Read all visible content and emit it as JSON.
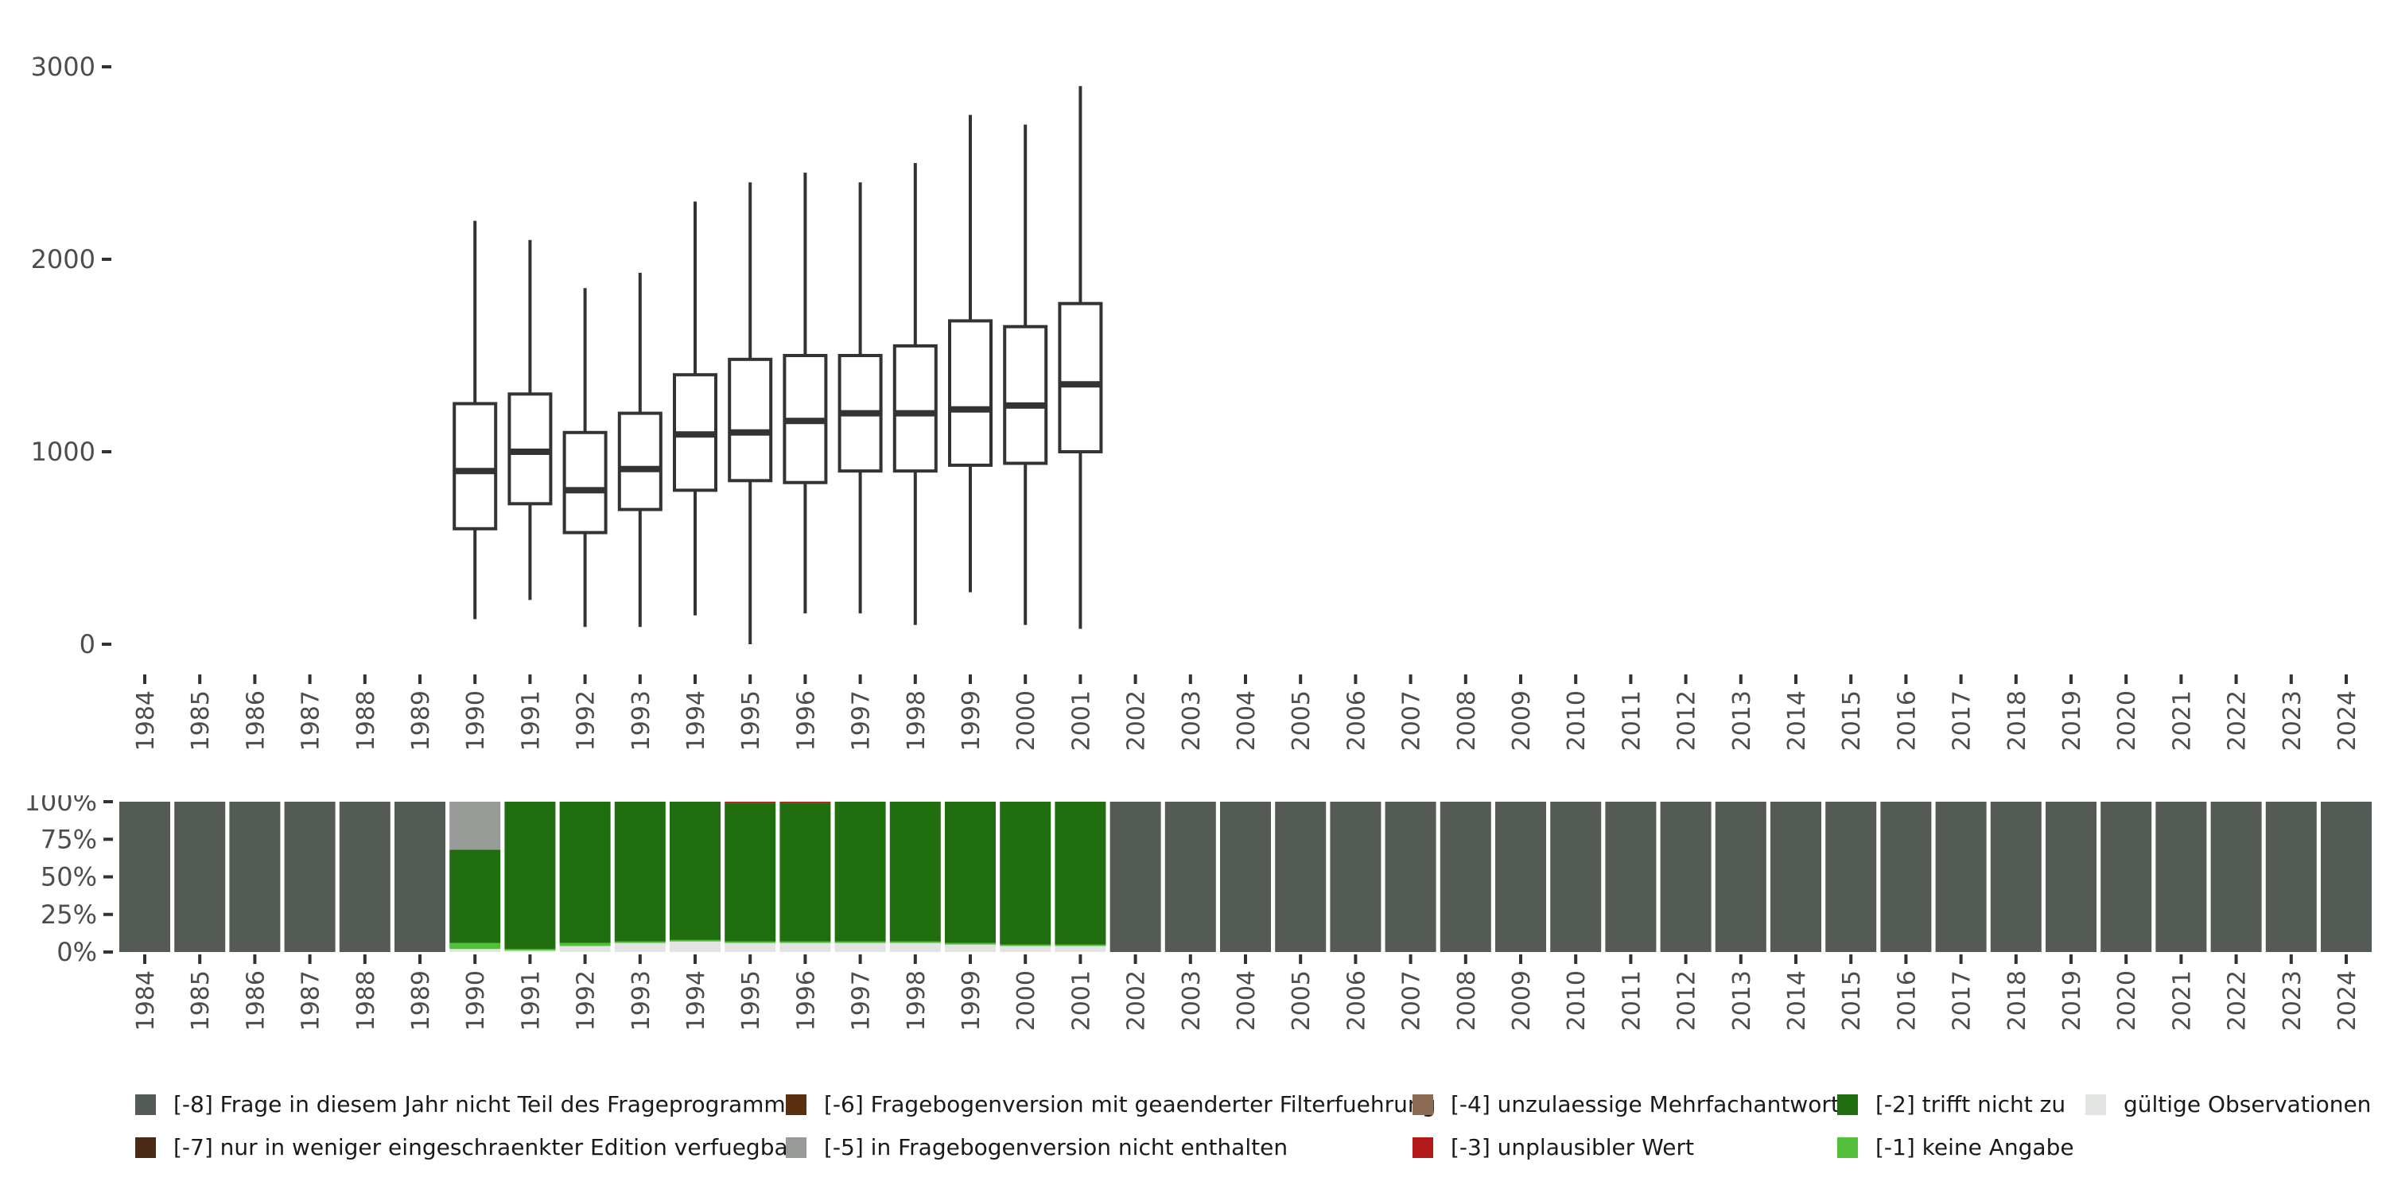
{
  "chart_data": [
    {
      "type": "boxplot",
      "xlabel": "",
      "ylabel": "",
      "ylim": [
        0,
        3000
      ],
      "yticks": [
        0,
        1000,
        2000,
        3000
      ],
      "ytick_labels": [
        "0",
        "1000",
        "2000",
        "3000"
      ],
      "categories": [
        "1984",
        "1985",
        "1986",
        "1987",
        "1988",
        "1989",
        "1990",
        "1991",
        "1992",
        "1993",
        "1994",
        "1995",
        "1996",
        "1997",
        "1998",
        "1999",
        "2000",
        "2001",
        "2002",
        "2003",
        "2004",
        "2005",
        "2006",
        "2007",
        "2008",
        "2009",
        "2010",
        "2011",
        "2012",
        "2013",
        "2014",
        "2015",
        "2016",
        "2017",
        "2018",
        "2019",
        "2020",
        "2021",
        "2022",
        "2023",
        "2024"
      ],
      "boxes": [
        {
          "year": "1990",
          "whisker_low": 130,
          "q1": 600,
          "median": 900,
          "q3": 1250,
          "whisker_high": 2200
        },
        {
          "year": "1991",
          "whisker_low": 230,
          "q1": 730,
          "median": 1000,
          "q3": 1300,
          "whisker_high": 2100
        },
        {
          "year": "1992",
          "whisker_low": 90,
          "q1": 580,
          "median": 800,
          "q3": 1100,
          "whisker_high": 1850
        },
        {
          "year": "1993",
          "whisker_low": 90,
          "q1": 700,
          "median": 910,
          "q3": 1200,
          "whisker_high": 1930
        },
        {
          "year": "1994",
          "whisker_low": 150,
          "q1": 800,
          "median": 1090,
          "q3": 1400,
          "whisker_high": 2300
        },
        {
          "year": "1995",
          "whisker_low": 0,
          "q1": 850,
          "median": 1100,
          "q3": 1480,
          "whisker_high": 2400
        },
        {
          "year": "1996",
          "whisker_low": 160,
          "q1": 840,
          "median": 1160,
          "q3": 1500,
          "whisker_high": 2450
        },
        {
          "year": "1997",
          "whisker_low": 160,
          "q1": 900,
          "median": 1200,
          "q3": 1500,
          "whisker_high": 2400
        },
        {
          "year": "1998",
          "whisker_low": 100,
          "q1": 900,
          "median": 1200,
          "q3": 1550,
          "whisker_high": 2500
        },
        {
          "year": "1999",
          "whisker_low": 270,
          "q1": 930,
          "median": 1220,
          "q3": 1680,
          "whisker_high": 2750
        },
        {
          "year": "2000",
          "whisker_low": 100,
          "q1": 940,
          "median": 1240,
          "q3": 1650,
          "whisker_high": 2700
        },
        {
          "year": "2001",
          "whisker_low": 80,
          "q1": 1000,
          "median": 1350,
          "q3": 1770,
          "whisker_high": 2900
        }
      ]
    },
    {
      "type": "stacked_bar",
      "ylim": [
        0,
        1
      ],
      "yticks": [
        0,
        0.25,
        0.5,
        0.75,
        1
      ],
      "ytick_labels": [
        "0%",
        "25%",
        "50%",
        "75%",
        "100%"
      ],
      "categories": [
        "1984",
        "1985",
        "1986",
        "1987",
        "1988",
        "1989",
        "1990",
        "1991",
        "1992",
        "1993",
        "1994",
        "1995",
        "1996",
        "1997",
        "1998",
        "1999",
        "2000",
        "2001",
        "2002",
        "2003",
        "2004",
        "2005",
        "2006",
        "2007",
        "2008",
        "2009",
        "2010",
        "2011",
        "2012",
        "2013",
        "2014",
        "2015",
        "2016",
        "2017",
        "2018",
        "2019",
        "2020",
        "2021",
        "2022",
        "2023",
        "2024"
      ],
      "series": [
        {
          "name": "gültige Observationen",
          "color": "#e2e4e2",
          "values": [
            0,
            0,
            0,
            0,
            0,
            0,
            0.02,
            0.01,
            0.04,
            0.06,
            0.07,
            0.06,
            0.06,
            0.06,
            0.06,
            0.05,
            0.04,
            0.04,
            0,
            0,
            0,
            0,
            0,
            0,
            0,
            0,
            0,
            0,
            0,
            0,
            0,
            0,
            0,
            0,
            0,
            0,
            0,
            0,
            0,
            0,
            0
          ]
        },
        {
          "name": "[-1] keine Angabe",
          "color": "#52be3c",
          "values": [
            0,
            0,
            0,
            0,
            0,
            0,
            0.04,
            0.01,
            0.02,
            0.01,
            0.01,
            0.01,
            0.01,
            0.01,
            0.01,
            0.01,
            0.01,
            0.01,
            0,
            0,
            0,
            0,
            0,
            0,
            0,
            0,
            0,
            0,
            0,
            0,
            0,
            0,
            0,
            0,
            0,
            0,
            0,
            0,
            0,
            0,
            0
          ]
        },
        {
          "name": "[-2] trifft nicht zu",
          "color": "#216e10",
          "values": [
            0,
            0,
            0,
            0,
            0,
            0,
            0.62,
            0.98,
            0.94,
            0.93,
            0.92,
            0.92,
            0.92,
            0.93,
            0.93,
            0.94,
            0.95,
            0.95,
            0,
            0,
            0,
            0,
            0,
            0,
            0,
            0,
            0,
            0,
            0,
            0,
            0,
            0,
            0,
            0,
            0,
            0,
            0,
            0,
            0,
            0,
            0
          ]
        },
        {
          "name": "[-3] unplausibler Wert",
          "color": "#b31b1b",
          "values": [
            0,
            0,
            0,
            0,
            0,
            0,
            0,
            0,
            0,
            0,
            0,
            0.01,
            0.01,
            0,
            0,
            0,
            0,
            0,
            0,
            0,
            0,
            0,
            0,
            0,
            0,
            0,
            0,
            0,
            0,
            0,
            0,
            0,
            0,
            0,
            0,
            0,
            0,
            0,
            0,
            0,
            0
          ]
        },
        {
          "name": "[-4] unzulaessige Mehrfachantwort",
          "color": "#8c6a53",
          "values": [
            0,
            0,
            0,
            0,
            0,
            0,
            0,
            0,
            0,
            0,
            0,
            0,
            0,
            0,
            0,
            0,
            0,
            0,
            0,
            0,
            0,
            0,
            0,
            0,
            0,
            0,
            0,
            0,
            0,
            0,
            0,
            0,
            0,
            0,
            0,
            0,
            0,
            0,
            0,
            0,
            0
          ]
        },
        {
          "name": "[-5] in Fragebogenversion nicht enthalten",
          "color": "#989b98",
          "values": [
            0,
            0,
            0,
            0,
            0,
            0,
            0.32,
            0,
            0,
            0,
            0,
            0,
            0,
            0,
            0,
            0,
            0,
            0,
            0,
            0,
            0,
            0,
            0,
            0,
            0,
            0,
            0,
            0,
            0,
            0,
            0,
            0,
            0,
            0,
            0,
            0,
            0,
            0,
            0,
            0,
            0
          ]
        },
        {
          "name": "[-6] Fragebogenversion mit geaenderter Filterfuehrung",
          "color": "#5a3010",
          "values": [
            0,
            0,
            0,
            0,
            0,
            0,
            0,
            0,
            0,
            0,
            0,
            0,
            0,
            0,
            0,
            0,
            0,
            0,
            0,
            0,
            0,
            0,
            0,
            0,
            0,
            0,
            0,
            0,
            0,
            0,
            0,
            0,
            0,
            0,
            0,
            0,
            0,
            0,
            0,
            0,
            0
          ]
        },
        {
          "name": "[-7] nur in weniger eingeschraenkter Edition verfuegbar",
          "color": "#4a2b15",
          "values": [
            0,
            0,
            0,
            0,
            0,
            0,
            0,
            0,
            0,
            0,
            0,
            0,
            0,
            0,
            0,
            0,
            0,
            0,
            0,
            0,
            0,
            0,
            0,
            0,
            0,
            0,
            0,
            0,
            0,
            0,
            0,
            0,
            0,
            0,
            0,
            0,
            0,
            0,
            0,
            0,
            0
          ]
        },
        {
          "name": "[-8] Frage in diesem Jahr nicht Teil des Frageprogramms",
          "color": "#545b54",
          "values": [
            1,
            1,
            1,
            1,
            1,
            1,
            0,
            0,
            0,
            0,
            0,
            0,
            0,
            0,
            0,
            0,
            0,
            0,
            1,
            1,
            1,
            1,
            1,
            1,
            1,
            1,
            1,
            1,
            1,
            1,
            1,
            1,
            1,
            1,
            1,
            1,
            1,
            1,
            1,
            1,
            1
          ]
        }
      ],
      "legend_position": "bottom",
      "legend_order": [
        "[-8] Frage in diesem Jahr nicht Teil des Frageprogramms",
        "[-6] Fragebogenversion mit geaenderter Filterfuehrung",
        "[-4] unzulaessige Mehrfachantwort",
        "[-2] trifft nicht zu",
        "gültige Observationen",
        "[-7] nur in weniger eingeschraenkter Edition verfuegbar",
        "[-5] in Fragebogenversion nicht enthalten",
        "[-3] unplausibler Wert",
        "[-1] keine Angabe"
      ]
    }
  ]
}
